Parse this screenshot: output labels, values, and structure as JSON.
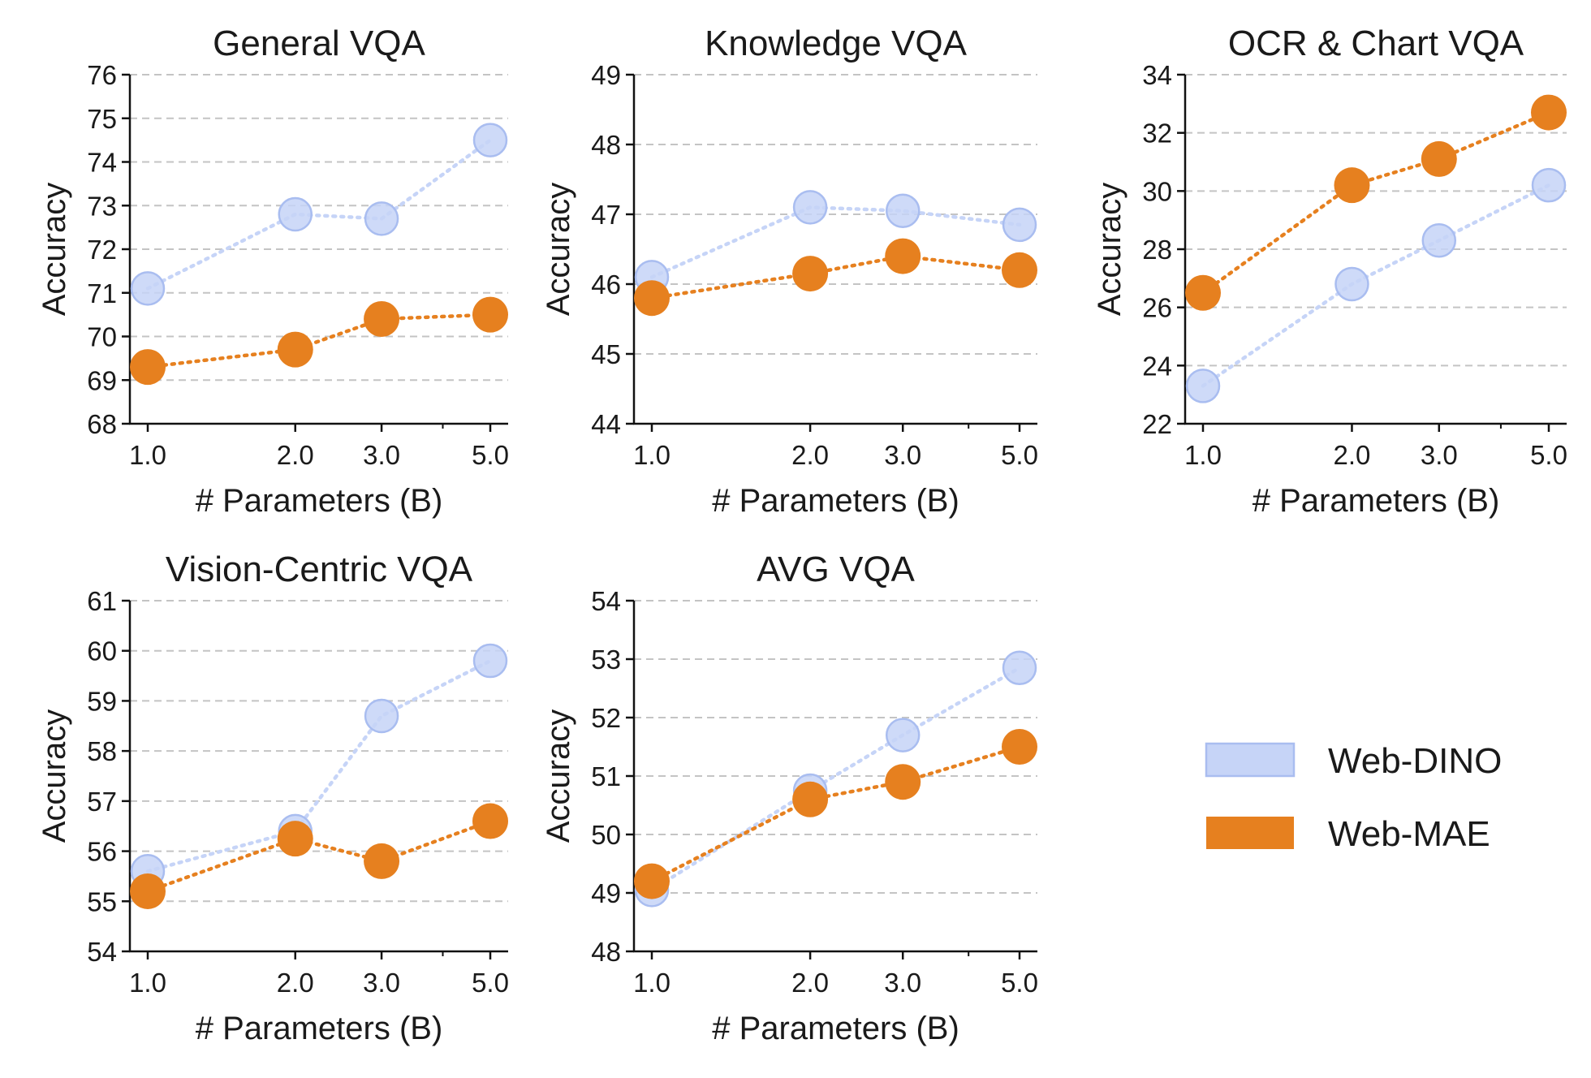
{
  "colors": {
    "Web-DINO": "#c6d4f7",
    "Web-DINO-edge": "#a9bdf0",
    "Web-MAE": "#e6801f"
  },
  "legend": [
    {
      "name": "Web-DINO",
      "color": "#c6d4f7"
    },
    {
      "name": "Web-MAE",
      "color": "#e6801f"
    }
  ],
  "chart_data": [
    {
      "type": "line",
      "title": "General VQA",
      "xlabel": "# Parameters (B)",
      "ylabel": "Accuracy",
      "xscale": "log",
      "x": [
        1.0,
        2.0,
        3.0,
        5.0
      ],
      "xtick_labels": [
        "1.0",
        "2.0",
        "3.0",
        "5.0"
      ],
      "ylim": [
        68,
        76
      ],
      "yticks": [
        68,
        69,
        70,
        71,
        72,
        73,
        74,
        75,
        76
      ],
      "grid": "horizontal dashed",
      "series": [
        {
          "name": "Web-DINO",
          "values": [
            71.1,
            72.8,
            72.7,
            74.5
          ]
        },
        {
          "name": "Web-MAE",
          "values": [
            69.3,
            69.7,
            70.4,
            70.5
          ]
        }
      ]
    },
    {
      "type": "line",
      "title": "Knowledge VQA",
      "xlabel": "# Parameters (B)",
      "ylabel": "Accuracy",
      "xscale": "log",
      "x": [
        1.0,
        2.0,
        3.0,
        5.0
      ],
      "xtick_labels": [
        "1.0",
        "2.0",
        "3.0",
        "5.0"
      ],
      "ylim": [
        44,
        49
      ],
      "yticks": [
        44,
        45,
        46,
        47,
        48,
        49
      ],
      "grid": "horizontal dashed",
      "series": [
        {
          "name": "Web-DINO",
          "values": [
            46.1,
            47.1,
            47.05,
            46.85
          ]
        },
        {
          "name": "Web-MAE",
          "values": [
            45.8,
            46.15,
            46.4,
            46.2
          ]
        }
      ]
    },
    {
      "type": "line",
      "title": "OCR & Chart VQA",
      "xlabel": "# Parameters (B)",
      "ylabel": "Accuracy",
      "xscale": "log",
      "x": [
        1.0,
        2.0,
        3.0,
        5.0
      ],
      "xtick_labels": [
        "1.0",
        "2.0",
        "3.0",
        "5.0"
      ],
      "ylim": [
        22,
        34
      ],
      "yticks": [
        22,
        24,
        26,
        28,
        30,
        32,
        34
      ],
      "grid": "horizontal dashed",
      "series": [
        {
          "name": "Web-DINO",
          "values": [
            23.3,
            26.8,
            28.3,
            30.2
          ]
        },
        {
          "name": "Web-MAE",
          "values": [
            26.5,
            30.2,
            31.1,
            32.7
          ]
        }
      ]
    },
    {
      "type": "line",
      "title": "Vision-Centric VQA",
      "xlabel": "# Parameters (B)",
      "ylabel": "Accuracy",
      "xscale": "log",
      "x": [
        1.0,
        2.0,
        3.0,
        5.0
      ],
      "xtick_labels": [
        "1.0",
        "2.0",
        "3.0",
        "5.0"
      ],
      "ylim": [
        54,
        61
      ],
      "yticks": [
        54,
        55,
        56,
        57,
        58,
        59,
        60,
        61
      ],
      "grid": "horizontal dashed",
      "series": [
        {
          "name": "Web-DINO",
          "values": [
            55.6,
            56.4,
            58.7,
            59.8
          ]
        },
        {
          "name": "Web-MAE",
          "values": [
            55.2,
            56.25,
            55.8,
            56.6
          ]
        }
      ]
    },
    {
      "type": "line",
      "title": "AVG VQA",
      "xlabel": "# Parameters (B)",
      "ylabel": "Accuracy",
      "xscale": "log",
      "x": [
        1.0,
        2.0,
        3.0,
        5.0
      ],
      "xtick_labels": [
        "1.0",
        "2.0",
        "3.0",
        "5.0"
      ],
      "ylim": [
        48,
        54
      ],
      "yticks": [
        48,
        49,
        50,
        51,
        52,
        53,
        54
      ],
      "grid": "horizontal dashed",
      "series": [
        {
          "name": "Web-DINO",
          "values": [
            49.05,
            50.75,
            51.7,
            52.85
          ]
        },
        {
          "name": "Web-MAE",
          "values": [
            49.2,
            50.6,
            50.9,
            51.5
          ]
        }
      ]
    }
  ]
}
